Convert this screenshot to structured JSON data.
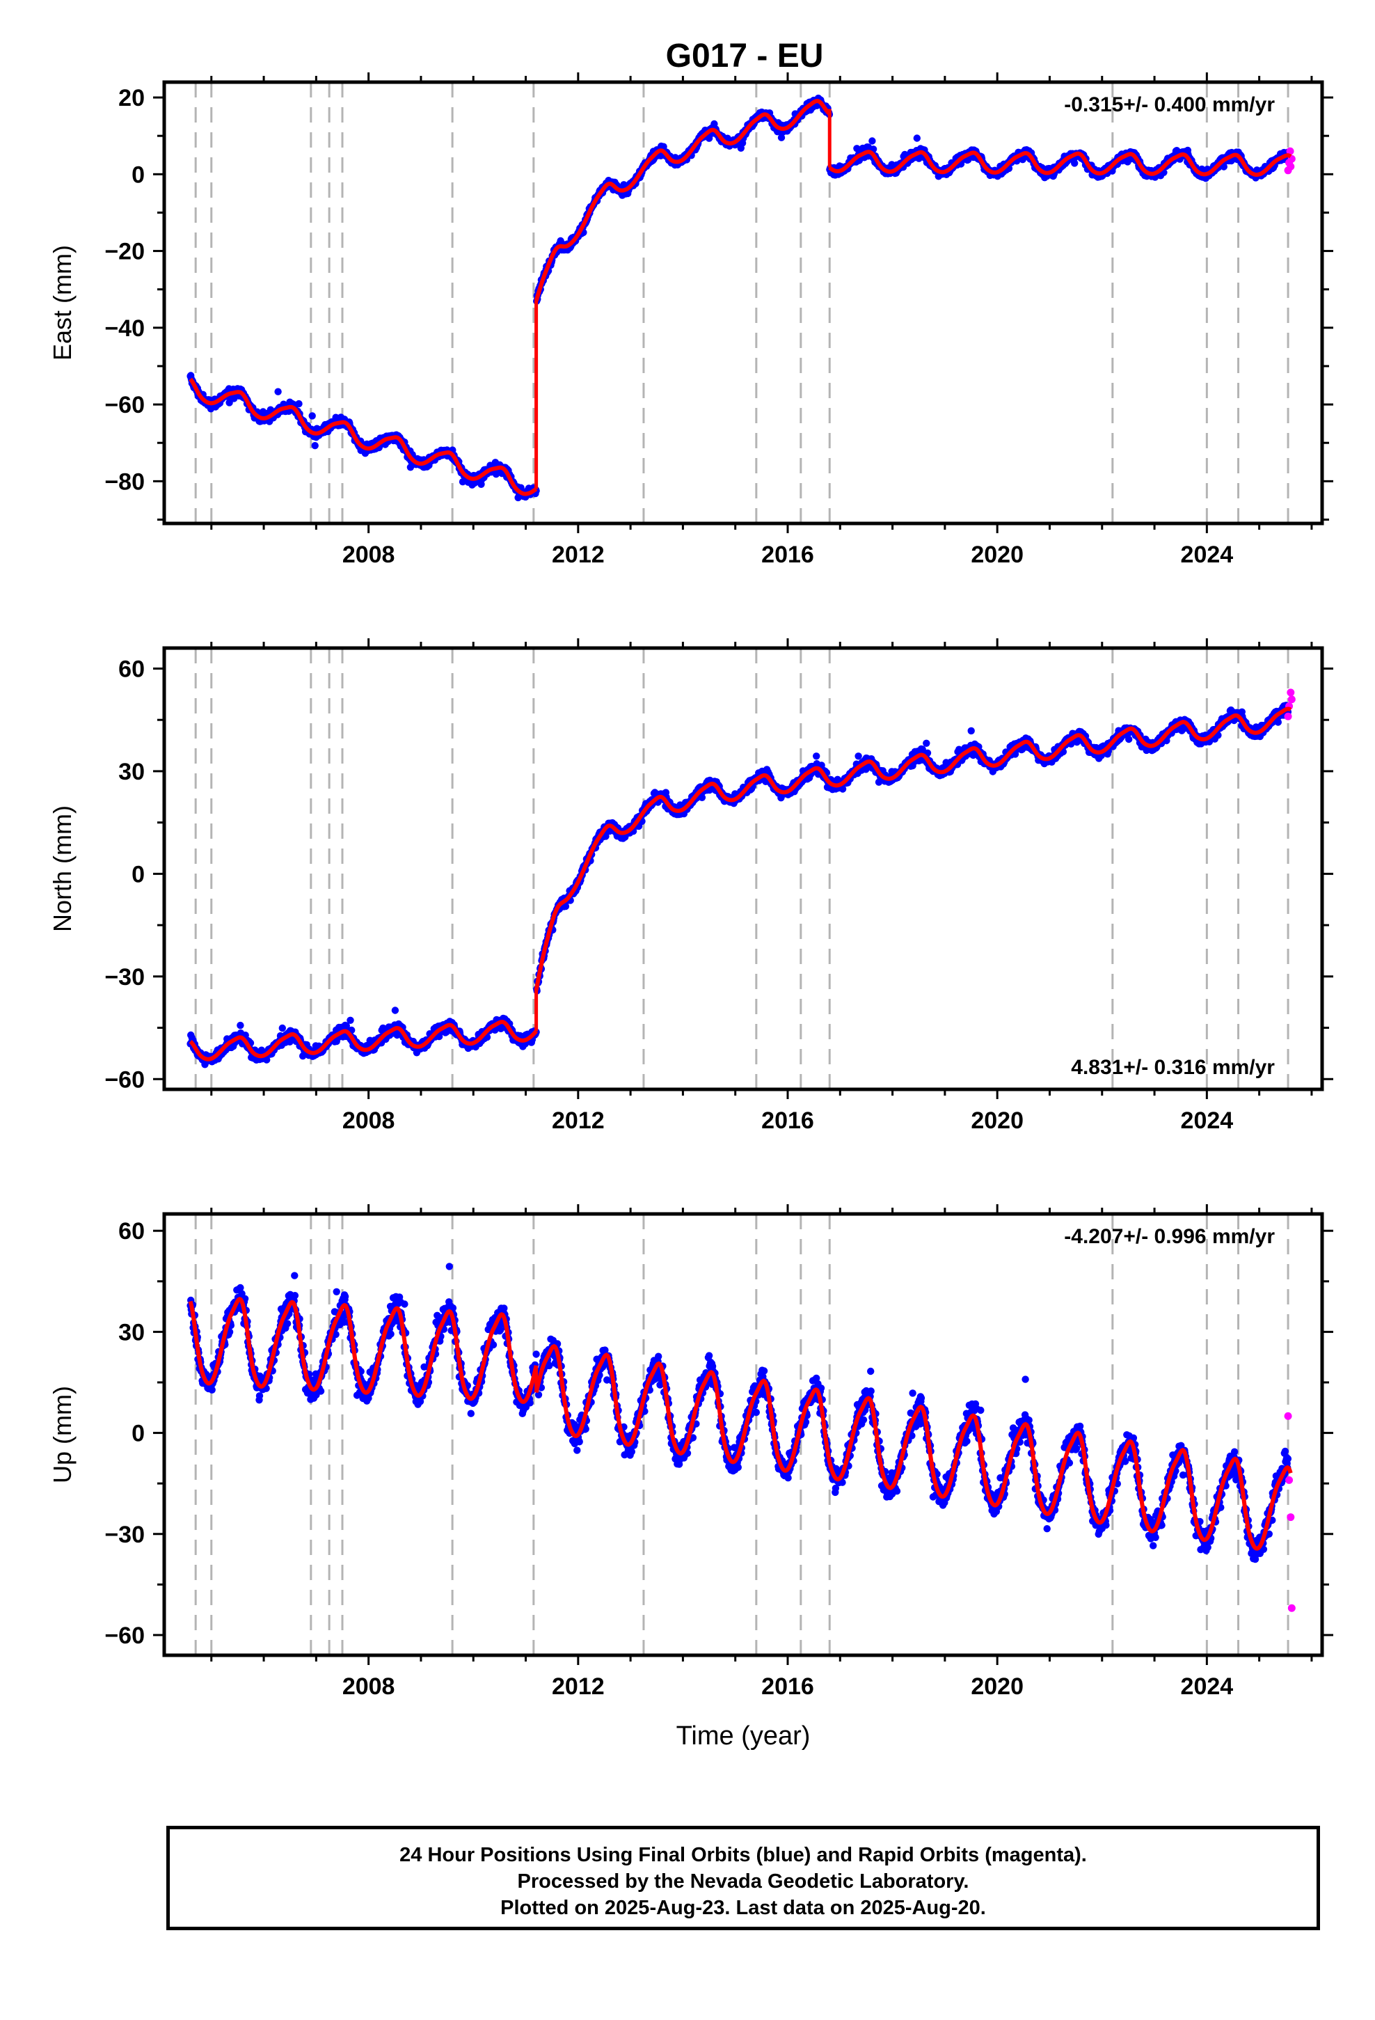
{
  "title": "G017 - EU",
  "colors": {
    "final_orbits": "#0000ff",
    "rapid_orbits": "#ff00ff",
    "model": "#ff0000",
    "offset_lines": "#b4b4b4",
    "frame": "#000000"
  },
  "caption": {
    "line1": "24 Hour Positions Using Final Orbits (blue) and Rapid Orbits (magenta).",
    "line2": "Processed by the Nevada Geodetic Laboratory.",
    "line3": "Plotted on 2025-Aug-23. Last data on 2025-Aug-20."
  },
  "chart_data": [
    {
      "type": "scatter",
      "title": "G017 - EU",
      "ylabel": "East (mm)",
      "xlabel": "",
      "xlim": [
        2004.1,
        2026.2
      ],
      "ylim": [
        -91,
        24
      ],
      "x_ticks": [
        2008,
        2012,
        2016,
        2020,
        2024
      ],
      "y_ticks": [
        -80,
        -60,
        -40,
        -20,
        0,
        20
      ],
      "annotation": "-0.315+/- 0.400 mm/yr",
      "annotation_position": "top-right",
      "offset_epochs": [
        2004.7,
        2005.0,
        2006.9,
        2007.25,
        2007.5,
        2009.6,
        2011.15,
        2013.25,
        2015.4,
        2016.25,
        2016.8,
        2022.2,
        2024.0,
        2024.6,
        2025.55
      ],
      "trend_segments": [
        {
          "x": [
            2004.6,
            2011.2
          ],
          "y": [
            -56,
            -82
          ]
        },
        {
          "x": [
            2011.2,
            2016.8
          ],
          "y": [
            -33,
            17
          ]
        },
        {
          "x": [
            2016.8,
            2025.6
          ],
          "y": [
            3,
            2
          ]
        }
      ],
      "postseismic_tau": [
        0,
        1.1,
        0
      ],
      "seasonal_amplitude": 2.2,
      "scatter_sigma": 1.8,
      "rapid_points": {
        "x": [
          2025.55,
          2025.57,
          2025.59,
          2025.6,
          2025.62
        ],
        "y": [
          1,
          3,
          6,
          2,
          4
        ]
      }
    },
    {
      "type": "scatter",
      "ylabel": "North (mm)",
      "xlabel": "",
      "xlim": [
        2004.1,
        2026.2
      ],
      "ylim": [
        -63,
        66
      ],
      "x_ticks": [
        2008,
        2012,
        2016,
        2020,
        2024
      ],
      "y_ticks": [
        -60,
        -30,
        0,
        30,
        60
      ],
      "annotation": "4.831+/- 0.316 mm/yr",
      "annotation_position": "bottom-right",
      "offset_epochs": [
        2004.7,
        2005.0,
        2006.9,
        2007.25,
        2007.5,
        2009.6,
        2011.15,
        2013.25,
        2015.4,
        2016.25,
        2016.8,
        2022.2,
        2024.0,
        2024.6,
        2025.55
      ],
      "trend_segments": [
        {
          "x": [
            2004.6,
            2011.2
          ],
          "y": [
            -52,
            -46
          ]
        },
        {
          "x": [
            2011.2,
            2025.6
          ],
          "y": [
            -34,
            45
          ]
        }
      ],
      "postseismic_tau": [
        0,
        0.8
      ],
      "seasonal_amplitude": 2.5,
      "scatter_sigma": 2.4,
      "rapid_points": {
        "x": [
          2025.55,
          2025.57,
          2025.6,
          2025.62
        ],
        "y": [
          46,
          49,
          53,
          51
        ]
      }
    },
    {
      "type": "scatter",
      "ylabel": "Up (mm)",
      "xlabel": "Time (year)",
      "xlim": [
        2004.1,
        2026.2
      ],
      "ylim": [
        -66,
        65
      ],
      "x_ticks": [
        2008,
        2012,
        2016,
        2020,
        2024
      ],
      "y_ticks": [
        -60,
        -30,
        0,
        30,
        60
      ],
      "annotation": "-4.207+/- 0.996 mm/yr",
      "annotation_position": "top-right",
      "offset_epochs": [
        2004.7,
        2005.0,
        2006.9,
        2007.25,
        2007.5,
        2009.6,
        2011.15,
        2013.25,
        2015.4,
        2016.25,
        2016.8,
        2022.2,
        2024.0,
        2024.6,
        2025.55
      ],
      "trend_segments": [
        {
          "x": [
            2004.6,
            2011.2
          ],
          "y": [
            26,
            20
          ]
        },
        {
          "x": [
            2011.2,
            2025.6
          ],
          "y": [
            12,
            -25
          ]
        }
      ],
      "postseismic_tau": [
        0,
        0
      ],
      "seasonal_amplitude": 11,
      "scatter_sigma": 6,
      "rapid_points": {
        "x": [
          2025.55,
          2025.57,
          2025.6,
          2025.62
        ],
        "y": [
          5,
          -14,
          -25,
          -52
        ]
      }
    }
  ]
}
